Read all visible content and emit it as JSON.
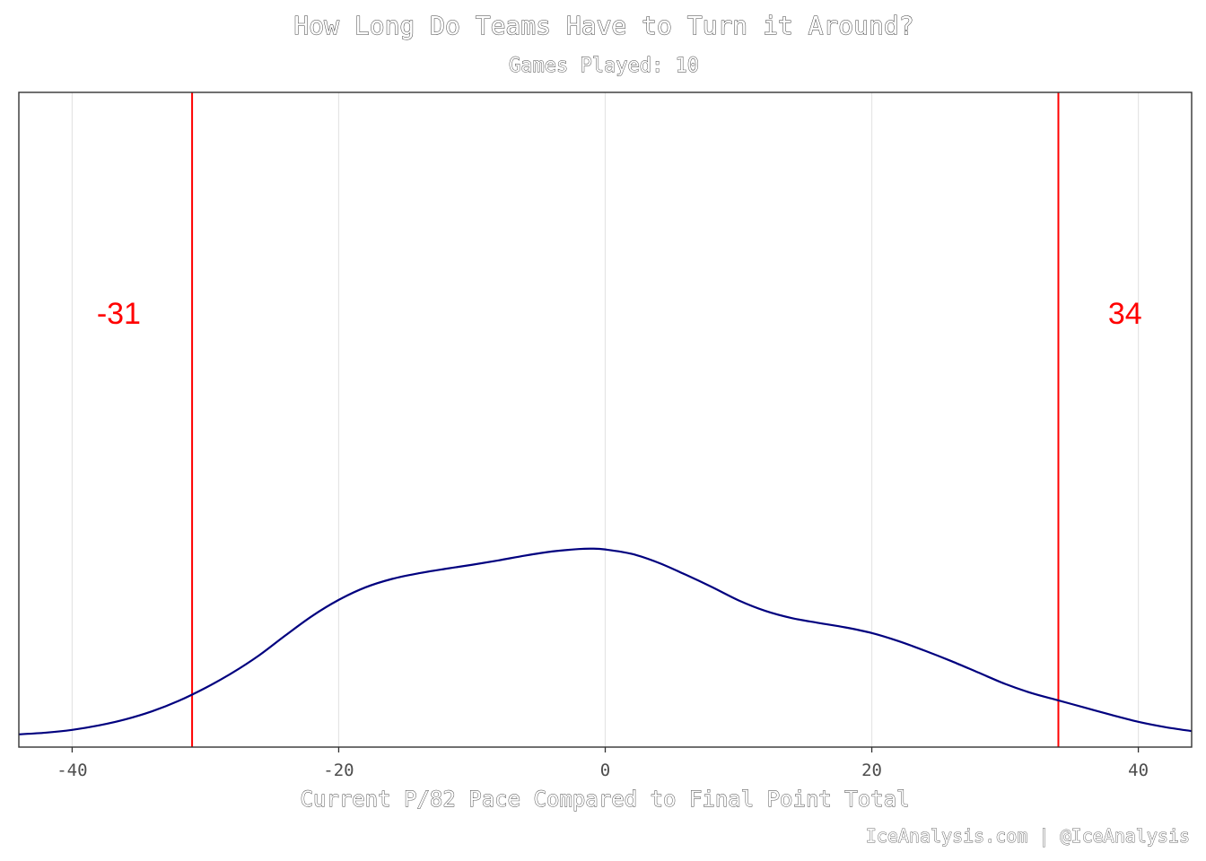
{
  "chart_data": {
    "type": "line",
    "title": "How Long Do Teams Have to Turn it Around?",
    "subtitle": "Games Played: 10",
    "xlabel": "Current P/82 Pace Compared to Final Point Total",
    "ylabel": "",
    "caption": "IceAnalysis.com | @IceAnalysis",
    "xlim": [
      -44,
      44
    ],
    "ylim": [
      0,
      1
    ],
    "x_ticks": [
      -40,
      -20,
      0,
      20,
      40
    ],
    "x_tick_labels": [
      "-40",
      "-20",
      "0",
      "20",
      "40"
    ],
    "grid": "vertical major lines",
    "series": [
      {
        "line_color": "#00007f",
        "x": [
          -44,
          -42,
          -40,
          -38,
          -36,
          -34,
          -32,
          -30,
          -28,
          -26,
          -24,
          -22,
          -20,
          -18,
          -16,
          -14,
          -12,
          -10,
          -8,
          -6,
          -4,
          -2,
          -1,
          0,
          2,
          4,
          6,
          8,
          10,
          12,
          14,
          16,
          18,
          20,
          22,
          24,
          26,
          28,
          30,
          32,
          34,
          36,
          38,
          40,
          42,
          44
        ],
        "y": [
          0.005,
          0.009,
          0.016,
          0.027,
          0.042,
          0.062,
          0.088,
          0.12,
          0.157,
          0.2,
          0.25,
          0.298,
          0.338,
          0.369,
          0.39,
          0.404,
          0.415,
          0.425,
          0.436,
          0.448,
          0.458,
          0.464,
          0.465,
          0.463,
          0.452,
          0.43,
          0.401,
          0.37,
          0.337,
          0.311,
          0.293,
          0.281,
          0.27,
          0.256,
          0.236,
          0.212,
          0.186,
          0.158,
          0.13,
          0.107,
          0.089,
          0.071,
          0.053,
          0.036,
          0.023,
          0.013
        ]
      }
    ],
    "vlines": [
      {
        "x": -31,
        "color": "#ff0000",
        "label": "-31",
        "label_x": -36.5
      },
      {
        "x": 34,
        "color": "#ff0000",
        "label": "34",
        "label_x": 39
      }
    ]
  },
  "colors": {
    "density_line": "#00007f",
    "threshold_lines": "#ff0000",
    "grid": "#e5e5e5",
    "panel_border": "#333333"
  }
}
